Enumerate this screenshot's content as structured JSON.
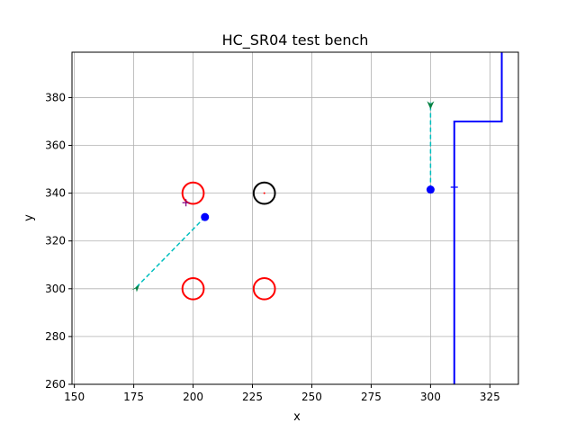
{
  "chart_data": {
    "type": "scatter",
    "title": "HC_SR04 test bench",
    "xlabel": "x",
    "ylabel": "y",
    "xlim": [
      149,
      337
    ],
    "ylim": [
      260,
      399
    ],
    "xticks": [
      "150",
      "175",
      "200",
      "225",
      "250",
      "275",
      "300",
      "325"
    ],
    "yticks": [
      "260",
      "280",
      "300",
      "320",
      "340",
      "360",
      "380"
    ],
    "grid": true,
    "colors": {
      "obstacle": "#ff0000",
      "target": "#000000",
      "sensor": "#0000ff",
      "ray": "#00bfbf",
      "ray_end": "#008040",
      "wall": "#0000ff",
      "marker": "#800080"
    },
    "obstacles": [
      {
        "x": 200,
        "y": 340,
        "r": 4.5
      },
      {
        "x": 200,
        "y": 300,
        "r": 4.5
      },
      {
        "x": 230,
        "y": 300,
        "r": 4.5
      }
    ],
    "target": {
      "x": 230,
      "y": 340,
      "r": 4.5
    },
    "sensors": [
      {
        "x": 205,
        "y": 330
      },
      {
        "x": 300,
        "y": 341.5
      }
    ],
    "rays": [
      {
        "x": [
          205,
          175.5
        ],
        "y": [
          330,
          300
        ]
      },
      {
        "x": [
          300,
          300
        ],
        "y": [
          341.5,
          378
        ]
      }
    ],
    "ray_ends": [
      {
        "x": 175.5,
        "y": 300.5,
        "dir": "down-left"
      },
      {
        "x": 300,
        "y": 377,
        "dir": "down"
      }
    ],
    "plus_markers": [
      {
        "x": 197,
        "y": 336,
        "color": "#800080"
      },
      {
        "x": 310,
        "y": 342.5,
        "color": "#0000ff"
      }
    ],
    "wall": {
      "x": [
        310,
        310,
        330,
        330
      ],
      "y": [
        260,
        370,
        370,
        399
      ]
    }
  }
}
